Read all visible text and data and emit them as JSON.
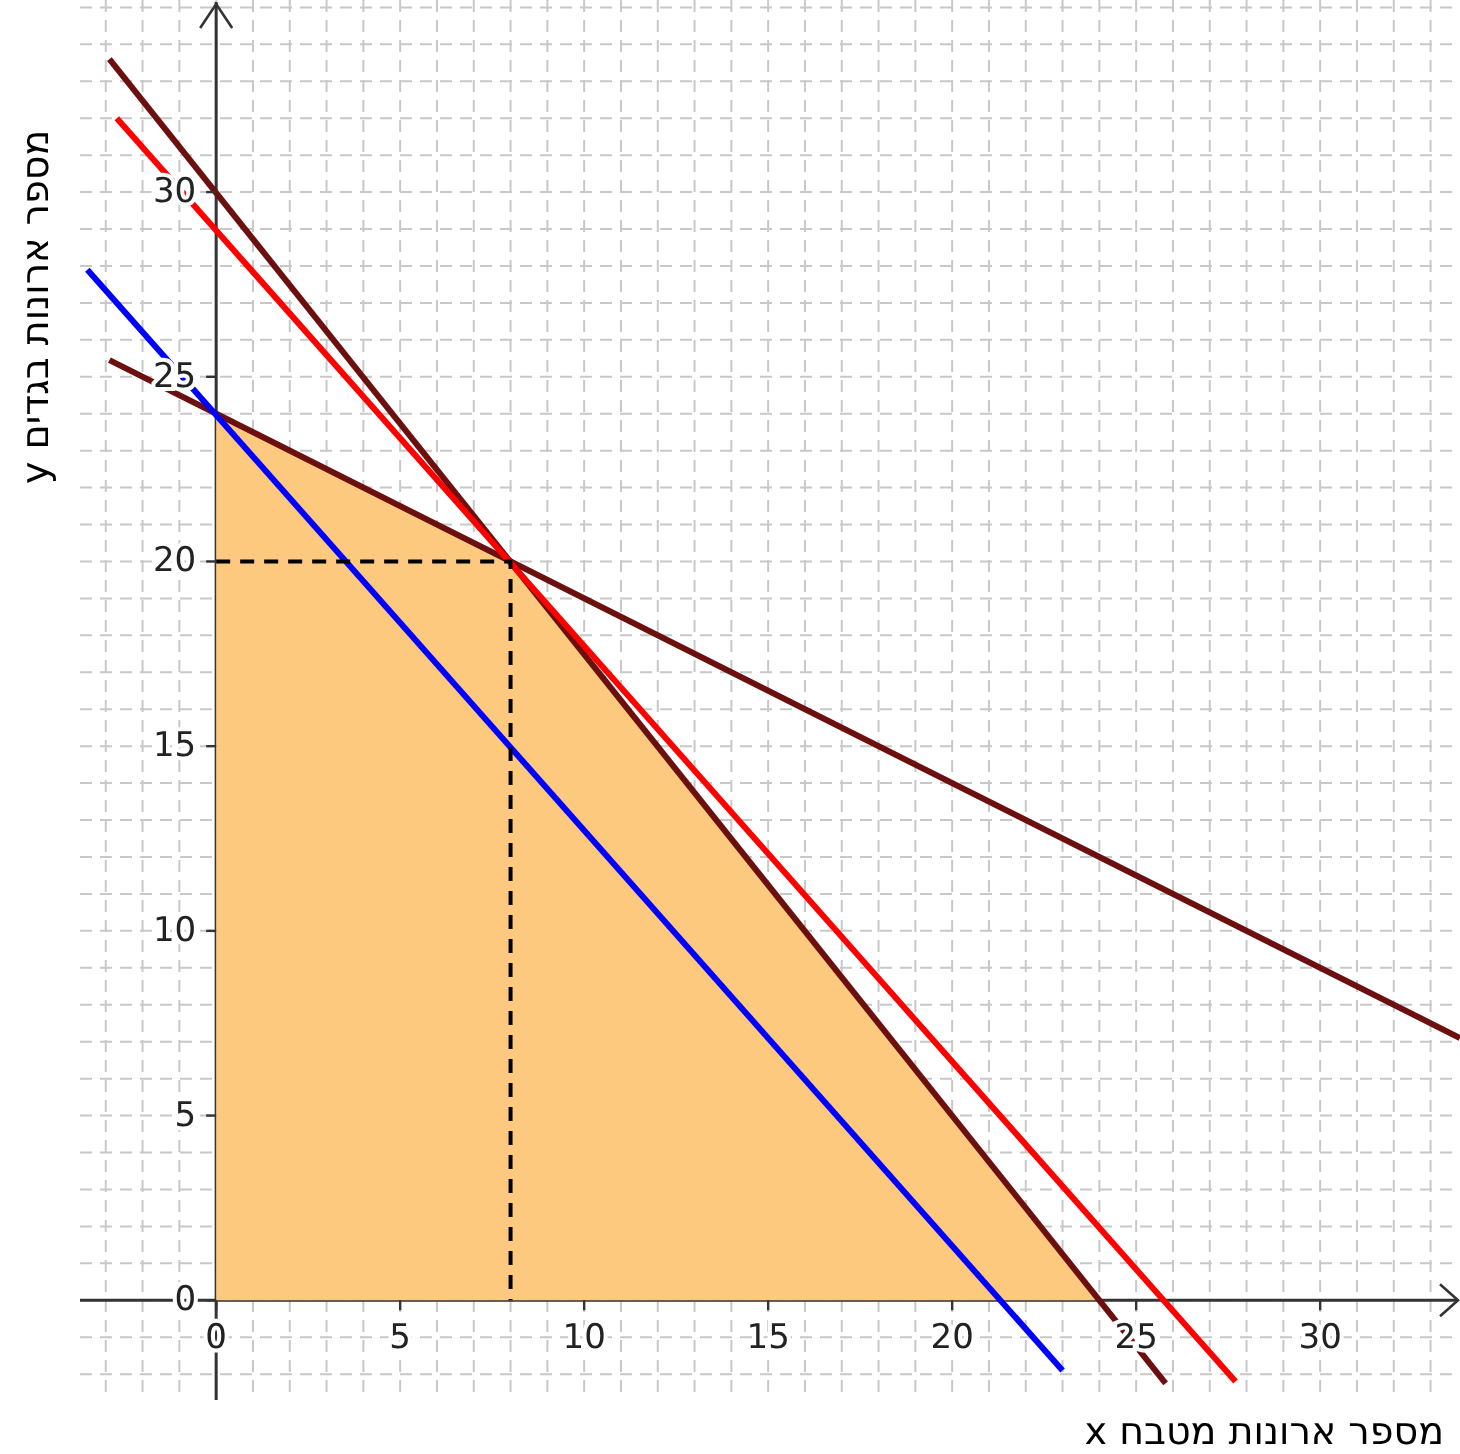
{
  "chart_data": {
    "type": "line",
    "xlabel": "x מספר ארונות מטבח",
    "ylabel": "y מספר ארונות בגדים",
    "xlim": [
      -3.7,
      33.8
    ],
    "ylim": [
      -2.7,
      35.2
    ],
    "xticks": [
      {
        "value": -3,
        "label": null
      },
      {
        "value": -2,
        "label": null
      },
      {
        "value": -1,
        "label": null
      },
      0,
      {
        "value": 1,
        "label": null
      },
      {
        "value": 2,
        "label": null
      },
      {
        "value": 3,
        "label": null
      },
      {
        "value": 4,
        "label": null
      },
      5,
      {
        "value": 6,
        "label": null
      },
      {
        "value": 7,
        "label": null
      },
      {
        "value": 8,
        "label": null
      },
      {
        "value": 9,
        "label": null
      },
      10,
      {
        "value": 11,
        "label": null
      },
      {
        "value": 12,
        "label": null
      },
      {
        "value": 13,
        "label": null
      },
      {
        "value": 14,
        "label": null
      },
      15,
      {
        "value": 16,
        "label": null
      },
      {
        "value": 17,
        "label": null
      },
      {
        "value": 18,
        "label": null
      },
      {
        "value": 19,
        "label": null
      },
      20,
      {
        "value": 21,
        "label": null
      },
      {
        "value": 22,
        "label": null
      },
      {
        "value": 23,
        "label": null
      },
      {
        "value": 24,
        "label": null
      },
      25,
      {
        "value": 26,
        "label": null
      },
      {
        "value": 27,
        "label": null
      },
      {
        "value": 28,
        "label": null
      },
      {
        "value": 29,
        "label": null
      },
      30,
      {
        "value": 31,
        "label": null
      },
      {
        "value": 32,
        "label": null
      },
      {
        "value": 33,
        "label": null
      }
    ],
    "yticks": [
      {
        "value": -2,
        "label": null
      },
      {
        "value": -1,
        "label": null
      },
      0,
      {
        "value": 1,
        "label": null
      },
      {
        "value": 2,
        "label": null
      },
      {
        "value": 3,
        "label": null
      },
      {
        "value": 4,
        "label": null
      },
      5,
      {
        "value": 6,
        "label": null
      },
      {
        "value": 7,
        "label": null
      },
      {
        "value": 8,
        "label": null
      },
      {
        "value": 9,
        "label": null
      },
      10,
      {
        "value": 11,
        "label": null
      },
      {
        "value": 12,
        "label": null
      },
      {
        "value": 13,
        "label": null
      },
      {
        "value": 14,
        "label": null
      },
      15,
      {
        "value": 16,
        "label": null
      },
      {
        "value": 17,
        "label": null
      },
      {
        "value": 18,
        "label": null
      },
      {
        "value": 19,
        "label": null
      },
      20,
      {
        "value": 21,
        "label": null
      },
      {
        "value": 22,
        "label": null
      },
      {
        "value": 23,
        "label": null
      },
      {
        "value": 24,
        "label": null
      },
      25,
      {
        "value": 26,
        "label": null
      },
      {
        "value": 27,
        "label": null
      },
      {
        "value": 28,
        "label": null
      },
      {
        "value": 29,
        "label": null
      },
      30,
      {
        "value": 31,
        "label": null
      },
      {
        "value": 32,
        "label": null
      },
      {
        "value": 33,
        "label": null
      },
      {
        "value": 34,
        "label": null
      },
      {
        "value": 35,
        "label": null
      }
    ],
    "grid": true,
    "series": [
      {
        "type": "area",
        "color": "#fdc97f",
        "x": [
          0,
          8,
          24
        ],
        "values": [
          24,
          20,
          0
        ]
      },
      {
        "type": "line",
        "color": "#6b0f0f",
        "x": [
          -2.9,
          33.8
        ],
        "values": [
          25.45,
          7.1
        ]
      },
      {
        "type": "line",
        "color": "#6b0f0f",
        "x": [
          -2.9,
          25.8
        ],
        "values": [
          33.6,
          -2.25
        ]
      },
      {
        "type": "line",
        "color": "#ff0000",
        "x": [
          -2.7,
          27.7
        ],
        "values": [
          32.0,
          -2.2
        ]
      },
      {
        "type": "line",
        "color": "#0000ff",
        "x": [
          -3.5,
          23.0
        ],
        "values": [
          27.9,
          -1.9
        ]
      },
      {
        "type": "line",
        "color": "#000000",
        "line_style": "dashed",
        "x": [
          0,
          8,
          8
        ],
        "values": [
          20,
          20,
          0
        ]
      }
    ]
  }
}
